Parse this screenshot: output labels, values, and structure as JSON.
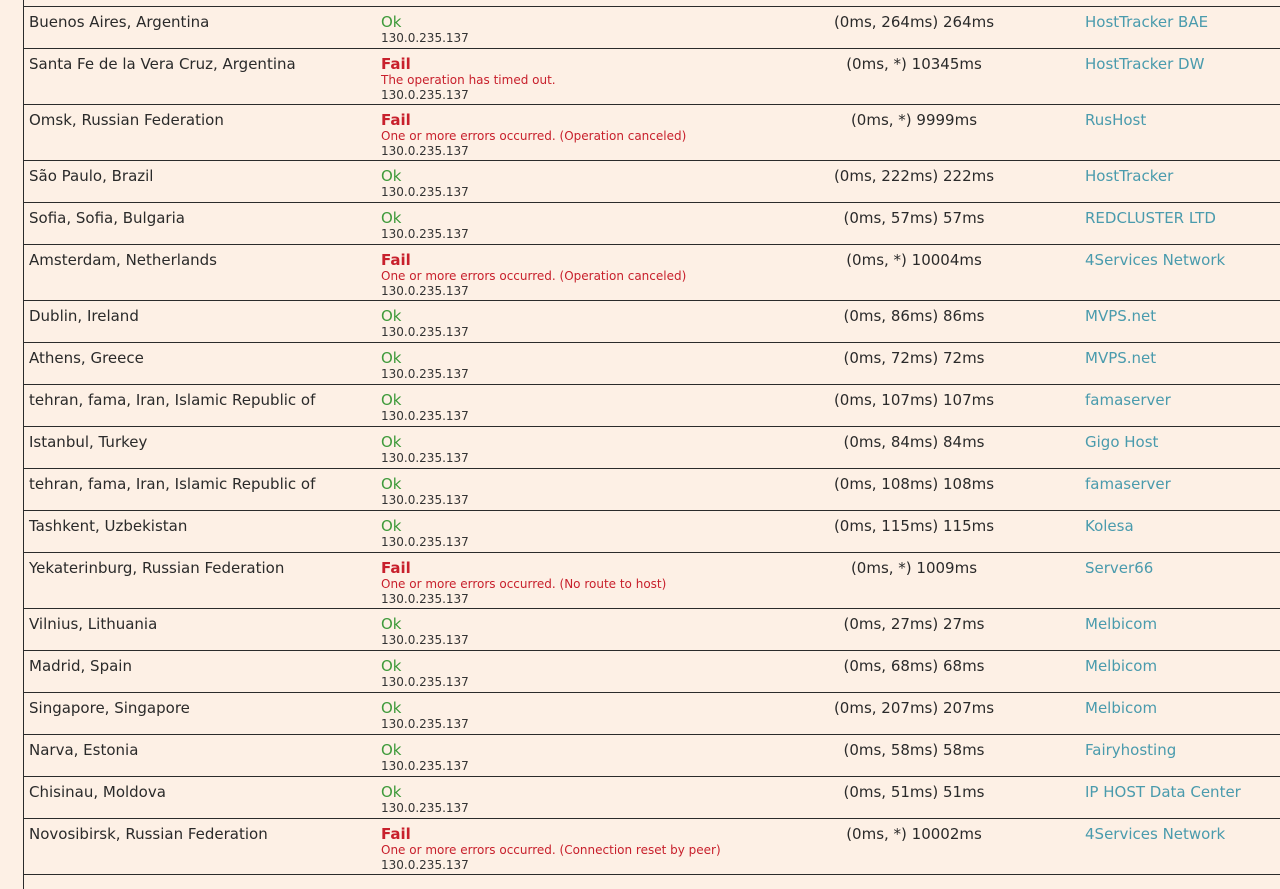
{
  "rows": [
    {
      "location": "Buenos Aires, Argentina",
      "status": "Ok",
      "error": "",
      "ip": "130.0.235.137",
      "time": "(0ms, 264ms) 264ms",
      "provider": "HostTracker BAE"
    },
    {
      "location": "Santa Fe de la Vera Cruz, Argentina",
      "status": "Fail",
      "error": "The operation has timed out.",
      "ip": "130.0.235.137",
      "time": "(0ms, *) 10345ms",
      "provider": "HostTracker DW"
    },
    {
      "location": "Omsk, Russian Federation",
      "status": "Fail",
      "error": "One or more errors occurred. (Operation canceled)",
      "ip": "130.0.235.137",
      "time": "(0ms, *) 9999ms",
      "provider": "RusHost"
    },
    {
      "location": "São Paulo, Brazil",
      "status": "Ok",
      "error": "",
      "ip": "130.0.235.137",
      "time": "(0ms, 222ms) 222ms",
      "provider": "HostTracker"
    },
    {
      "location": "Sofia, Sofia, Bulgaria",
      "status": "Ok",
      "error": "",
      "ip": "130.0.235.137",
      "time": "(0ms, 57ms) 57ms",
      "provider": "REDCLUSTER LTD"
    },
    {
      "location": "Amsterdam, Netherlands",
      "status": "Fail",
      "error": "One or more errors occurred. (Operation canceled)",
      "ip": "130.0.235.137",
      "time": "(0ms, *) 10004ms",
      "provider": "4Services Network"
    },
    {
      "location": "Dublin, Ireland",
      "status": "Ok",
      "error": "",
      "ip": "130.0.235.137",
      "time": "(0ms, 86ms) 86ms",
      "provider": "MVPS.net"
    },
    {
      "location": "Athens, Greece",
      "status": "Ok",
      "error": "",
      "ip": "130.0.235.137",
      "time": "(0ms, 72ms) 72ms",
      "provider": "MVPS.net"
    },
    {
      "location": "tehran, fama, Iran, Islamic Republic of",
      "status": "Ok",
      "error": "",
      "ip": "130.0.235.137",
      "time": "(0ms, 107ms) 107ms",
      "provider": "famaserver"
    },
    {
      "location": "Istanbul, Turkey",
      "status": "Ok",
      "error": "",
      "ip": "130.0.235.137",
      "time": "(0ms, 84ms) 84ms",
      "provider": "Gigo Host"
    },
    {
      "location": "tehran, fama, Iran, Islamic Republic of",
      "status": "Ok",
      "error": "",
      "ip": "130.0.235.137",
      "time": "(0ms, 108ms) 108ms",
      "provider": "famaserver"
    },
    {
      "location": "Tashkent, Uzbekistan",
      "status": "Ok",
      "error": "",
      "ip": "130.0.235.137",
      "time": "(0ms, 115ms) 115ms",
      "provider": "Kolesa"
    },
    {
      "location": "Yekaterinburg, Russian Federation",
      "status": "Fail",
      "error": "One or more errors occurred. (No route to host)",
      "ip": "130.0.235.137",
      "time": "(0ms, *) 1009ms",
      "provider": "Server66"
    },
    {
      "location": "Vilnius, Lithuania",
      "status": "Ok",
      "error": "",
      "ip": "130.0.235.137",
      "time": "(0ms, 27ms) 27ms",
      "provider": "Melbicom"
    },
    {
      "location": "Madrid, Spain",
      "status": "Ok",
      "error": "",
      "ip": "130.0.235.137",
      "time": "(0ms, 68ms) 68ms",
      "provider": "Melbicom"
    },
    {
      "location": "Singapore, Singapore",
      "status": "Ok",
      "error": "",
      "ip": "130.0.235.137",
      "time": "(0ms, 207ms) 207ms",
      "provider": "Melbicom"
    },
    {
      "location": "Narva, Estonia",
      "status": "Ok",
      "error": "",
      "ip": "130.0.235.137",
      "time": "(0ms, 58ms) 58ms",
      "provider": "Fairyhosting"
    },
    {
      "location": "Chisinau, Moldova",
      "status": "Ok",
      "error": "",
      "ip": "130.0.235.137",
      "time": "(0ms, 51ms) 51ms",
      "provider": "IP HOST Data Center"
    },
    {
      "location": "Novosibirsk, Russian Federation",
      "status": "Fail",
      "error": "One or more errors occurred. (Connection reset by peer)",
      "ip": "130.0.235.137",
      "time": "(0ms, *) 10002ms",
      "provider": "4Services Network"
    }
  ]
}
